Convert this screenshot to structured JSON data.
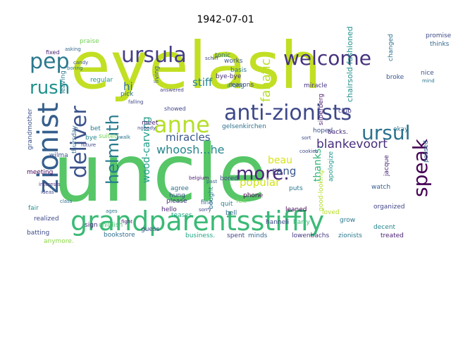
{
  "title": "1942-07-01",
  "words": [
    {
      "text": "eyelash",
      "color": "#c2df23"
    },
    {
      "text": "uncle",
      "color": "#56c667"
    },
    {
      "text": "grandparentsstiffly",
      "color": "#3aba76"
    },
    {
      "text": "anti-zionists",
      "color": "#3e4989"
    },
    {
      "text": "zionist",
      "color": "#355f8d"
    },
    {
      "text": "anne",
      "color": "#b5de2b"
    },
    {
      "text": "ursula",
      "color": "#433e85"
    },
    {
      "text": "pep",
      "color": "#2a788e"
    },
    {
      "text": "welcome",
      "color": "#46337e"
    },
    {
      "text": "rush",
      "color": "#21918c"
    },
    {
      "text": "deliver",
      "color": "#3b528b"
    },
    {
      "text": "ursul",
      "color": "#2c728e"
    },
    {
      "text": "speak",
      "color": "#440154"
    },
    {
      "text": "more.",
      "color": "#482878"
    },
    {
      "text": "helmuth",
      "color": "#287c8e"
    },
    {
      "text": "fanatic",
      "color": "#b8de29"
    },
    {
      "text": "whoosh...he",
      "color": "#24868e"
    },
    {
      "text": "miracles",
      "color": "#38588c"
    },
    {
      "text": "blankevoort",
      "color": "#472d7b"
    },
    {
      "text": "stiff",
      "color": "#25848e"
    },
    {
      "text": "popular",
      "color": "#d2e21b"
    },
    {
      "text": "beau",
      "color": "#d8e219"
    },
    {
      "text": "wood-carving",
      "color": "#1f9e89"
    },
    {
      "text": "rang",
      "color": "#39568c"
    },
    {
      "text": "thanks.",
      "color": "#32b67a"
    },
    {
      "text": "hi",
      "color": "#2d708e"
    },
    {
      "text": "bookstore",
      "color": "#2e6e8e"
    },
    {
      "text": "batting",
      "color": "#3e4a89"
    },
    {
      "text": "hello",
      "color": "#482475"
    },
    {
      "text": "please",
      "color": "#46327e"
    },
    {
      "text": "realized",
      "color": "#3e4989"
    },
    {
      "text": "business.",
      "color": "#21a685"
    },
    {
      "text": "spent",
      "color": "#404688"
    },
    {
      "text": "minds",
      "color": "#31688e"
    },
    {
      "text": "lowenbachs",
      "color": "#443a83"
    },
    {
      "text": "zionists",
      "color": "#2a788e"
    },
    {
      "text": "treated",
      "color": "#481f70"
    },
    {
      "text": "quit",
      "color": "#25838e"
    },
    {
      "text": "fine",
      "color": "#31688e"
    },
    {
      "text": "bought",
      "color": "#2c728e"
    },
    {
      "text": "felt",
      "color": "#73d056"
    },
    {
      "text": "leaned",
      "color": "#440154"
    },
    {
      "text": "loved",
      "color": "#b8de29"
    },
    {
      "text": "grow",
      "color": "#2a788e"
    },
    {
      "text": "harry",
      "color": "#3aba76"
    },
    {
      "text": "decent",
      "color": "#24868e"
    },
    {
      "text": "organized",
      "color": "#414487"
    },
    {
      "text": "watch",
      "color": "#355f8d"
    },
    {
      "text": "jacque",
      "color": "#482475"
    },
    {
      "text": "passed",
      "color": "#2d708e"
    },
    {
      "text": "okay",
      "color": "#2c728e"
    },
    {
      "text": "club",
      "color": "#433e85"
    },
    {
      "text": "hoped",
      "color": "#3b528b"
    },
    {
      "text": "silberberg",
      "color": "#481a6c"
    },
    {
      "text": "chairsold-fashioned",
      "color": "#21918c"
    },
    {
      "text": "apologize",
      "color": "#1f988b"
    },
    {
      "text": "good-looking",
      "color": "#b5de2b"
    },
    {
      "text": "bored",
      "color": "#3e4a89"
    },
    {
      "text": "phone",
      "color": "#440154"
    },
    {
      "text": "puts",
      "color": "#2a788e"
    },
    {
      "text": "agree",
      "color": "#2d708e"
    },
    {
      "text": "hung",
      "color": "#3b528b"
    },
    {
      "text": "teases",
      "color": "#22a884"
    },
    {
      "text": "bell",
      "color": "#31688e"
    },
    {
      "text": "sign",
      "color": "#482878"
    },
    {
      "text": "childish",
      "color": "#4ac16d"
    },
    {
      "text": "anymore.",
      "color": "#8bd646"
    },
    {
      "text": "fair",
      "color": "#21918c"
    },
    {
      "text": "class",
      "color": "#2e6e8e"
    },
    {
      "text": "ideas",
      "color": "#3e4989"
    },
    {
      "text": "meeting",
      "color": "#46085c"
    },
    {
      "text": "thursday",
      "color": "#31688e"
    },
    {
      "text": "grandmother",
      "color": "#3b528b"
    },
    {
      "text": "suited",
      "color": "#73d056"
    },
    {
      "text": "bye",
      "color": "#24868e"
    },
    {
      "text": "bet",
      "color": "#2a788e"
    },
    {
      "text": "pick",
      "color": "#2e6e8e"
    },
    {
      "text": "falling",
      "color": "#404688"
    },
    {
      "text": "meet",
      "color": "#482475"
    },
    {
      "text": "nobody",
      "color": "#3e4989"
    },
    {
      "text": "walk",
      "color": "#2c728e"
    },
    {
      "text": "showed",
      "color": "#414487"
    },
    {
      "text": "belgium",
      "color": "#481f70"
    },
    {
      "text": "regular",
      "color": "#1f988b"
    },
    {
      "text": "leaving",
      "color": "#2a788e"
    },
    {
      "text": "praise",
      "color": "#73d056"
    },
    {
      "text": "fixed",
      "color": "#481f70"
    },
    {
      "text": "asking",
      "color": "#31688e"
    },
    {
      "text": "candy",
      "color": "#3b528b"
    },
    {
      "text": "boring",
      "color": "#2d708e"
    },
    {
      "text": "living",
      "color": "#355f8d"
    },
    {
      "text": "answered",
      "color": "#433e85"
    },
    {
      "text": "tonic",
      "color": "#2c728e"
    },
    {
      "text": "schiff",
      "color": "#404688"
    },
    {
      "text": "bye-bye",
      "color": "#472d7b"
    },
    {
      "text": "works",
      "color": "#3b528b"
    },
    {
      "text": "basis",
      "color": "#2a788e"
    },
    {
      "text": "along",
      "color": "#21918c"
    },
    {
      "text": "miracle",
      "color": "#46337e"
    },
    {
      "text": "broke",
      "color": "#38588c"
    },
    {
      "text": "changed",
      "color": "#2c728e"
    },
    {
      "text": "promise",
      "color": "#3e4a89"
    },
    {
      "text": "thinks",
      "color": "#31688e"
    },
    {
      "text": "nice",
      "color": "#3b528b"
    },
    {
      "text": "mind",
      "color": "#2a788e"
    },
    {
      "text": "future",
      "color": "#404688"
    },
    {
      "text": "wilma",
      "color": "#3b528b"
    },
    {
      "text": "gelsenkirchen",
      "color": "#2d708e"
    },
    {
      "text": "backs.",
      "color": "#472d7b"
    },
    {
      "text": "cookies",
      "color": "#3e4989"
    },
    {
      "text": "sort",
      "color": "#3e4989"
    },
    {
      "text": "hanneli",
      "color": "#3e4989"
    },
    {
      "text": "sorry",
      "color": "#404688"
    },
    {
      "text": "past",
      "color": "#355f8d"
    },
    {
      "text": "ages",
      "color": "#2a788e"
    },
    {
      "text": "guess",
      "color": "#404688"
    },
    {
      "text": "reasons",
      "color": "#3e4989"
    },
    {
      "text": "interests",
      "color": "#46327e"
    },
    {
      "text": "fight",
      "color": "#482475"
    }
  ]
}
